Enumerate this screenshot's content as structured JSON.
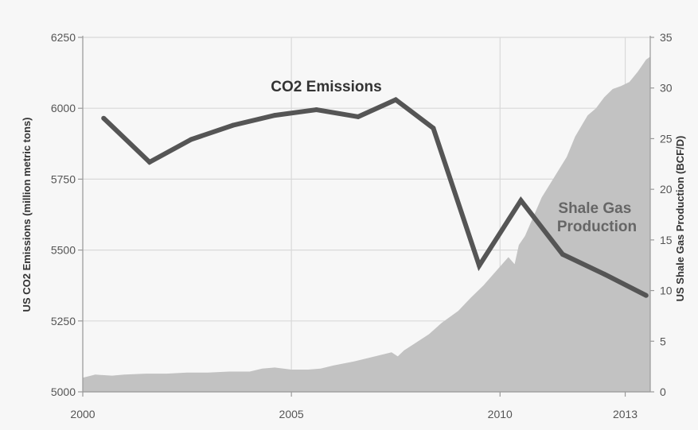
{
  "chart_data": {
    "type": "line",
    "title": "",
    "x_axis": {
      "range": [
        2000,
        2013.6
      ],
      "ticks": [
        2000,
        2005,
        2010,
        2013
      ],
      "tick_labels": [
        "2000",
        "2005",
        "2010",
        "2013"
      ]
    },
    "y_left": {
      "label": "US CO2 Emissions (million metric tons)",
      "range": [
        5000,
        6250
      ],
      "ticks": [
        5000,
        5250,
        5500,
        5750,
        6000,
        6250
      ],
      "tick_labels": [
        "5000",
        "5250",
        "5500",
        "5750",
        "6000",
        "6250"
      ]
    },
    "y_right": {
      "label": "US Shale Gas Production (BCF/D)",
      "range": [
        0,
        35
      ],
      "ticks": [
        0,
        5,
        10,
        15,
        20,
        25,
        30,
        35
      ],
      "tick_labels": [
        "0",
        "5",
        "10",
        "15",
        "20",
        "25",
        "30",
        "35"
      ]
    },
    "grid": true,
    "series": [
      {
        "name": "CO2 Emissions",
        "type": "line",
        "axis": "left",
        "color": "#555555",
        "x": [
          2000.5,
          2001.6,
          2002.6,
          2003.6,
          2004.6,
          2005.6,
          2006.6,
          2007.5,
          2008.4,
          2009.5,
          2010.5,
          2011.5,
          2012.5,
          2013.5
        ],
        "y": [
          5965,
          5810,
          5890,
          5940,
          5975,
          5995,
          5970,
          6030,
          5930,
          5445,
          5675,
          5485,
          5415,
          5340
        ]
      },
      {
        "name": "Shale Gas Production",
        "name_lines": [
          "Shale Gas",
          "Production"
        ],
        "type": "area",
        "axis": "right",
        "color": "#c2c2c2",
        "x": [
          2000,
          2000.3,
          2000.7,
          2001,
          2001.5,
          2002,
          2002.5,
          2003,
          2003.5,
          2004,
          2004.3,
          2004.6,
          2005,
          2005.4,
          2005.7,
          2006,
          2006.5,
          2007,
          2007.4,
          2007.55,
          2007.7,
          2008,
          2008.3,
          2008.6,
          2009,
          2009.3,
          2009.6,
          2009.9,
          2010.2,
          2010.35,
          2010.45,
          2010.6,
          2010.8,
          2011,
          2011.3,
          2011.6,
          2011.8,
          2012,
          2012.1,
          2012.3,
          2012.5,
          2012.7,
          2012.9,
          2013.1,
          2013.3,
          2013.5,
          2013.6
        ],
        "y": [
          1.4,
          1.7,
          1.6,
          1.7,
          1.8,
          1.8,
          1.9,
          1.9,
          2.0,
          2.0,
          2.3,
          2.4,
          2.2,
          2.2,
          2.3,
          2.6,
          3.0,
          3.5,
          3.9,
          3.5,
          4.1,
          4.9,
          5.7,
          6.8,
          8.0,
          9.3,
          10.5,
          11.9,
          13.3,
          12.6,
          14.5,
          15.4,
          17.3,
          19.2,
          21.2,
          23.2,
          25.2,
          26.6,
          27.3,
          28.0,
          29.1,
          29.9,
          30.2,
          30.6,
          31.6,
          32.8,
          33.1
        ]
      }
    ]
  }
}
